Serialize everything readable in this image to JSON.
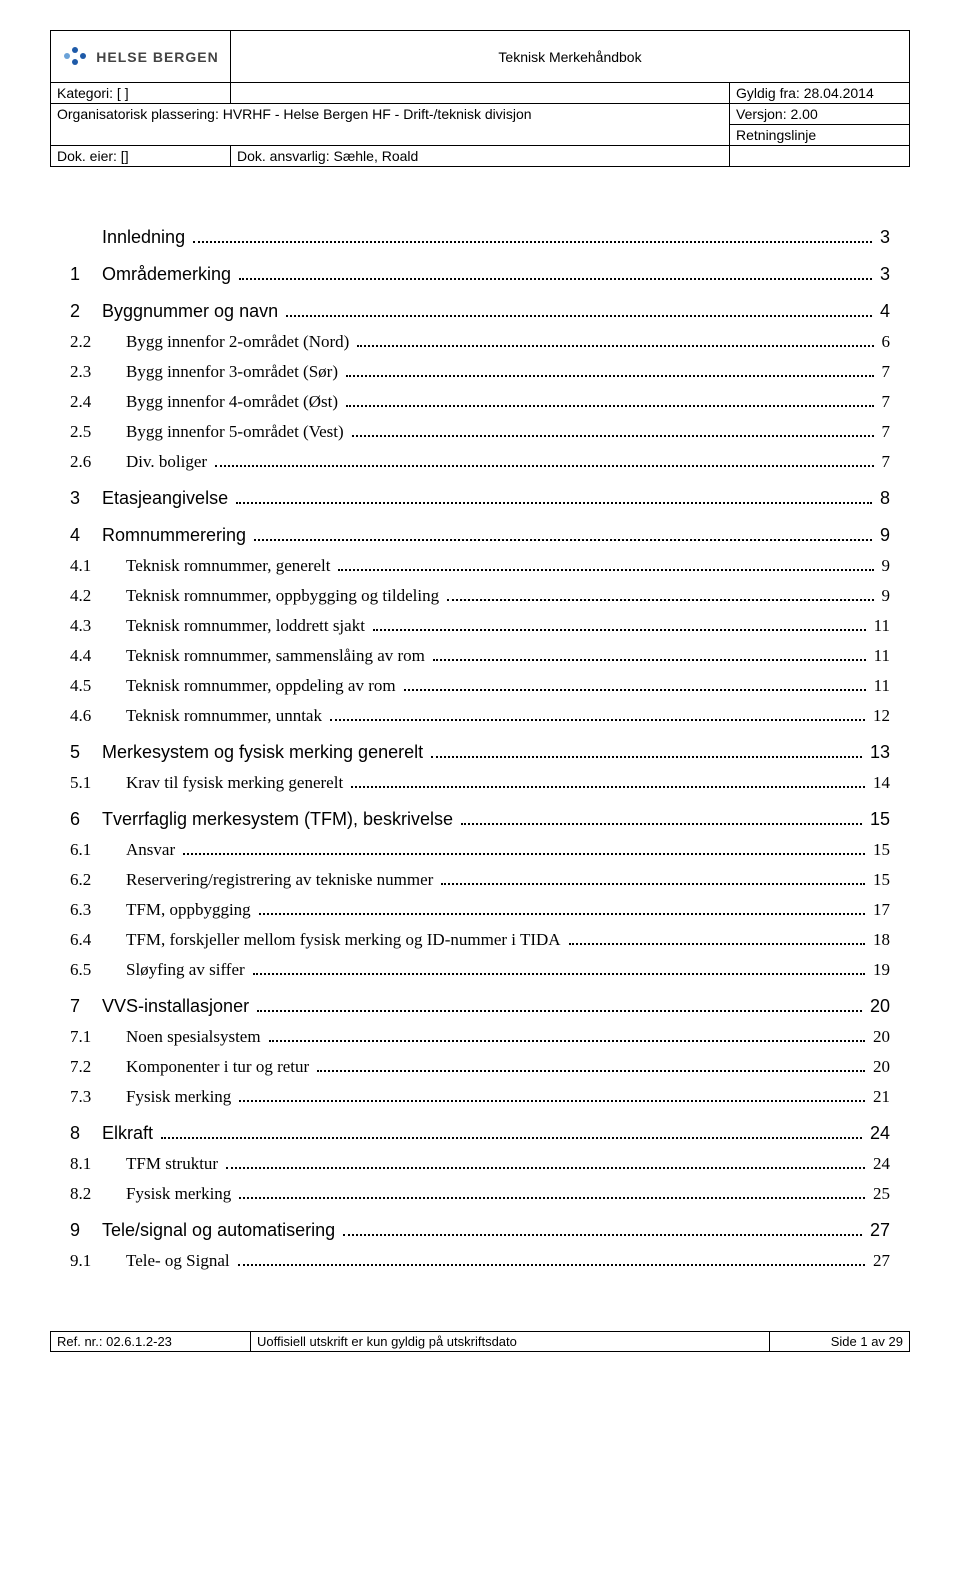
{
  "header": {
    "logo_text": "HELSE BERGEN",
    "title": "Teknisk Merkehåndbok",
    "kategori_label": "Kategori: [ ]",
    "org_label": "Organisatorisk plassering: HVRHF - Helse Bergen HF - Drift-/teknisk divisjon",
    "eier_label": "Dok. eier: []",
    "ansvarlig_label": "Dok. ansvarlig: Sæhle, Roald",
    "gyldig_label": "Gyldig fra: 28.04.2014",
    "versjon_label": "Versjon: 2.00",
    "retn_label": "Retningslinje",
    "logo_colors": {
      "blue": "#1e5aa8",
      "lightblue": "#6aa2d8"
    }
  },
  "toc": [
    {
      "level": 0,
      "num": "",
      "label": "Innledning",
      "page": "3"
    },
    {
      "level": 0,
      "num": "1",
      "label": "Områdemerking",
      "page": "3"
    },
    {
      "level": 0,
      "num": "2",
      "label": "Byggnummer og navn",
      "page": "4"
    },
    {
      "level": 1,
      "num": "2.2",
      "label": "Bygg innenfor 2-området (Nord)",
      "page": "6"
    },
    {
      "level": 1,
      "num": "2.3",
      "label": "Bygg innenfor 3-området (Sør)",
      "page": "7"
    },
    {
      "level": 1,
      "num": "2.4",
      "label": "Bygg innenfor 4-området (Øst)",
      "page": "7"
    },
    {
      "level": 1,
      "num": "2.5",
      "label": "Bygg innenfor 5-området (Vest)",
      "page": "7"
    },
    {
      "level": 1,
      "num": "2.6",
      "label": "Div. boliger",
      "page": "7"
    },
    {
      "level": 0,
      "num": "3",
      "label": "Etasjeangivelse",
      "page": "8"
    },
    {
      "level": 0,
      "num": "4",
      "label": "Romnummerering",
      "page": "9"
    },
    {
      "level": 1,
      "num": "4.1",
      "label": "Teknisk romnummer, generelt",
      "page": "9"
    },
    {
      "level": 1,
      "num": "4.2",
      "label": "Teknisk romnummer, oppbygging og tildeling",
      "page": "9"
    },
    {
      "level": 1,
      "num": "4.3",
      "label": "Teknisk romnummer, loddrett sjakt",
      "page": "11"
    },
    {
      "level": 1,
      "num": "4.4",
      "label": "Teknisk romnummer, sammenslåing av rom",
      "page": "11"
    },
    {
      "level": 1,
      "num": "4.5",
      "label": "Teknisk romnummer, oppdeling av rom",
      "page": "11"
    },
    {
      "level": 1,
      "num": "4.6",
      "label": "Teknisk romnummer, unntak",
      "page": "12"
    },
    {
      "level": 0,
      "num": "5",
      "label": "Merkesystem og fysisk merking generelt",
      "page": "13"
    },
    {
      "level": 1,
      "num": "5.1",
      "label": "Krav til fysisk merking generelt",
      "page": "14"
    },
    {
      "level": 0,
      "num": "6",
      "label": "Tverrfaglig merkesystem (TFM), beskrivelse",
      "page": "15"
    },
    {
      "level": 1,
      "num": "6.1",
      "label": "Ansvar",
      "page": "15"
    },
    {
      "level": 1,
      "num": "6.2",
      "label": "Reservering/registrering av tekniske nummer",
      "page": "15"
    },
    {
      "level": 1,
      "num": "6.3",
      "label": "TFM, oppbygging",
      "page": "17"
    },
    {
      "level": 1,
      "num": "6.4",
      "label": "TFM, forskjeller mellom fysisk merking og ID-nummer i TIDA",
      "page": "18"
    },
    {
      "level": 1,
      "num": "6.5",
      "label": "Sløyfing av siffer",
      "page": "19"
    },
    {
      "level": 0,
      "num": "7",
      "label": "VVS-installasjoner",
      "page": "20"
    },
    {
      "level": 1,
      "num": "7.1",
      "label": "Noen spesialsystem",
      "page": "20"
    },
    {
      "level": 1,
      "num": "7.2",
      "label": "Komponenter i tur og retur",
      "page": "20"
    },
    {
      "level": 1,
      "num": "7.3",
      "label": "Fysisk merking",
      "page": "21"
    },
    {
      "level": 0,
      "num": "8",
      "label": "Elkraft",
      "page": "24"
    },
    {
      "level": 1,
      "num": "8.1",
      "label": "TFM struktur",
      "page": "24"
    },
    {
      "level": 1,
      "num": "8.2",
      "label": "Fysisk merking",
      "page": "25"
    },
    {
      "level": 0,
      "num": "9",
      "label": "Tele/signal og automatisering",
      "page": "27"
    },
    {
      "level": 1,
      "num": "9.1",
      "label": "Tele- og Signal",
      "page": "27"
    }
  ],
  "footer": {
    "ref": "Ref. nr.: 02.6.1.2-23",
    "mid": "Uoffisiell utskrift er kun gyldig på utskriftsdato",
    "page": "Side 1 av 29"
  }
}
